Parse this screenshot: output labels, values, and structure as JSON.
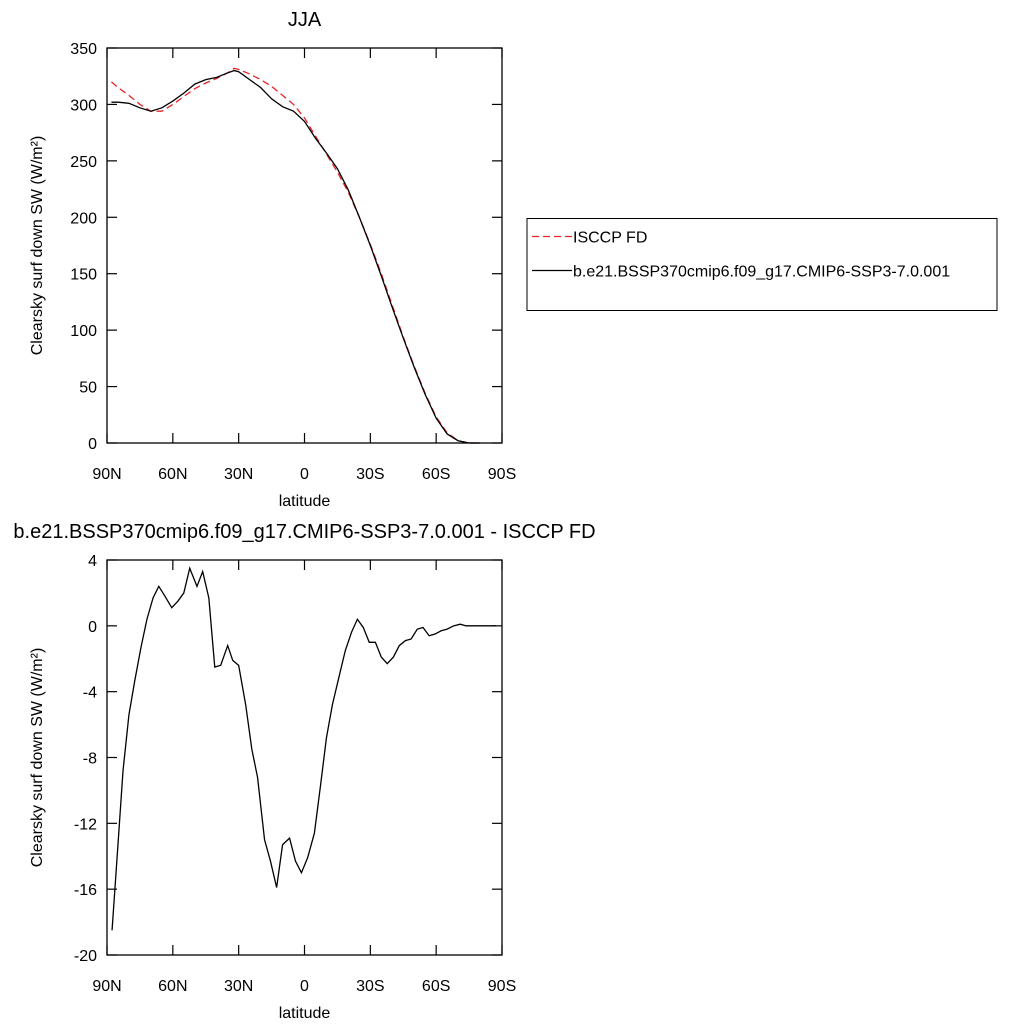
{
  "chart_data": [
    {
      "type": "line",
      "title": "JJA",
      "xlabel": "latitude",
      "ylabel": "Clearsky surf down SW (W/m²)",
      "xlim": [
        90,
        -90
      ],
      "xticks": [
        {
          "value": 90,
          "label": "90N"
        },
        {
          "value": 60,
          "label": "60N"
        },
        {
          "value": 30,
          "label": "30N"
        },
        0,
        {
          "value": -30,
          "label": "30S"
        },
        {
          "value": -60,
          "label": "60S"
        },
        {
          "value": -90,
          "label": "90S"
        }
      ],
      "ylim": [
        0,
        350
      ],
      "yticks": [
        0,
        50,
        100,
        150,
        200,
        250,
        300,
        350
      ],
      "legend": "right",
      "series": [
        {
          "name": "ISCCP FD",
          "color": "#e8232a",
          "linestyle": "dashed",
          "x": [
            88,
            85,
            80,
            75,
            70,
            65,
            60,
            55,
            50,
            45,
            40,
            35,
            32,
            30,
            25,
            20,
            15,
            10,
            5,
            0,
            -5,
            -10,
            -15,
            -20,
            -25,
            -30,
            -35,
            -40,
            -45,
            -50,
            -55,
            -60,
            -65,
            -70,
            -75,
            -80
          ],
          "values": [
            320,
            315,
            308,
            300,
            294,
            294,
            300,
            307,
            314,
            319,
            323,
            328,
            332,
            331,
            327,
            322,
            316,
            308,
            300,
            288,
            272,
            256,
            240,
            222,
            200,
            176,
            150,
            122,
            94,
            68,
            44,
            23,
            9,
            2,
            0,
            0
          ]
        },
        {
          "name": "b.e21.BSSP370cmip6.f09_g17.CMIP6-SSP3-7.0.001",
          "color": "#000000",
          "linestyle": "solid",
          "x": [
            88,
            85,
            80,
            75,
            70,
            65,
            60,
            55,
            50,
            45,
            40,
            35,
            32,
            30,
            25,
            20,
            15,
            10,
            5,
            0,
            -5,
            -10,
            -15,
            -20,
            -25,
            -30,
            -35,
            -40,
            -45,
            -50,
            -55,
            -60,
            -65,
            -70,
            -75,
            -80
          ],
          "values": [
            302,
            302,
            301,
            297,
            294,
            297,
            303,
            310,
            318,
            322,
            324,
            328,
            330,
            329,
            322,
            315,
            305,
            298,
            294,
            285,
            270,
            257,
            243,
            224,
            200,
            175,
            148,
            120,
            93,
            67,
            43,
            22,
            8,
            2,
            0,
            0
          ]
        }
      ]
    },
    {
      "type": "line",
      "title": "b.e21.BSSP370cmip6.f09_g17.CMIP6-SSP3-7.0.001 - ISCCP FD",
      "xlabel": "latitude",
      "ylabel": "Clearsky surf down SW (W/m²)",
      "xlim": [
        90,
        -90
      ],
      "xticks": [
        {
          "value": 90,
          "label": "90N"
        },
        {
          "value": 60,
          "label": "60N"
        },
        {
          "value": 30,
          "label": "30N"
        },
        0,
        {
          "value": -30,
          "label": "30S"
        },
        {
          "value": -60,
          "label": "60S"
        },
        {
          "value": -90,
          "label": "90S"
        }
      ],
      "ylim": [
        -20,
        4
      ],
      "yticks": [
        -20,
        -16,
        -12,
        -8,
        -4,
        0,
        4
      ],
      "series": [
        {
          "color": "#000000",
          "linestyle": "solid",
          "x": [
            87.7,
            85,
            82.7,
            80,
            77.3,
            74.5,
            71.8,
            69,
            66.4,
            63.6,
            60.5,
            57.7,
            55,
            52.3,
            49,
            46.4,
            43.6,
            40.9,
            38.2,
            35,
            32.7,
            30,
            26.8,
            24,
            21.4,
            18.2,
            15.5,
            12.7,
            10,
            6.8,
            4.1,
            1.4,
            -1.4,
            -4.5,
            -7.3,
            -10,
            -12.7,
            -15.9,
            -18.6,
            -21.4,
            -24.1,
            -26.8,
            -29.5,
            -32.3,
            -35,
            -37.7,
            -40.5,
            -43.2,
            -46,
            -48.6,
            -51.4,
            -54,
            -56.8,
            -59.5,
            -62.3,
            -65,
            -68,
            -71,
            -73.6,
            -76.4,
            -79,
            -81.8,
            -84.5,
            -87.3
          ],
          "values": [
            -18.5,
            -13.3,
            -8.8,
            -5.4,
            -3.3,
            -1.3,
            0.4,
            1.7,
            2.4,
            1.8,
            1.1,
            1.5,
            2.0,
            3.5,
            2.4,
            3.3,
            1.7,
            -2.5,
            -2.4,
            -1.2,
            -2.1,
            -2.4,
            -4.8,
            -7.5,
            -9.2,
            -13.0,
            -14.3,
            -15.9,
            -13.3,
            -12.9,
            -14.3,
            -15.0,
            -14.1,
            -12.6,
            -9.7,
            -6.8,
            -4.8,
            -3.0,
            -1.5,
            -0.4,
            0.4,
            -0.1,
            -1.0,
            -1.0,
            -1.9,
            -2.3,
            -1.9,
            -1.2,
            -0.9,
            -0.8,
            -0.2,
            -0.1,
            -0.6,
            -0.5,
            -0.3,
            -0.2,
            0.0,
            0.1,
            0.0,
            0.0,
            0.0,
            0.0,
            0.0,
            0.0
          ]
        }
      ]
    }
  ]
}
